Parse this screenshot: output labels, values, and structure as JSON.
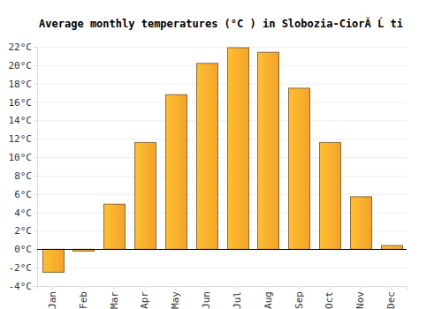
{
  "chart_data": {
    "type": "bar",
    "title": "Average monthly temperatures (°C ) in Slobozia-CiorĂ Ĺ ti",
    "categories": [
      "Jan",
      "Feb",
      "Mar",
      "Apr",
      "May",
      "Jun",
      "Jul",
      "Aug",
      "Sep",
      "Oct",
      "Nov",
      "Dec"
    ],
    "values": [
      -2.5,
      -0.2,
      4.9,
      11.6,
      16.8,
      20.2,
      21.9,
      21.4,
      17.5,
      11.6,
      5.7,
      0.4
    ],
    "color": "#fba92c",
    "ylim": [
      -4,
      22
    ],
    "yticks": [
      {
        "value": -4,
        "label": "-4°C"
      },
      {
        "value": -2,
        "label": "-2°C"
      },
      {
        "value": 0,
        "label": "0°C"
      },
      {
        "value": 2,
        "label": "2°C"
      },
      {
        "value": 4,
        "label": "4°C"
      },
      {
        "value": 6,
        "label": "6°C"
      },
      {
        "value": 8,
        "label": "8°C"
      },
      {
        "value": 10,
        "label": "10°C"
      },
      {
        "value": 12,
        "label": "12°C"
      },
      {
        "value": 14,
        "label": "14°C"
      },
      {
        "value": 16,
        "label": "16°C"
      },
      {
        "value": 18,
        "label": "18°C"
      },
      {
        "value": 20,
        "label": "20°C"
      },
      {
        "value": 22,
        "label": "22°C"
      }
    ],
    "grid": true
  }
}
